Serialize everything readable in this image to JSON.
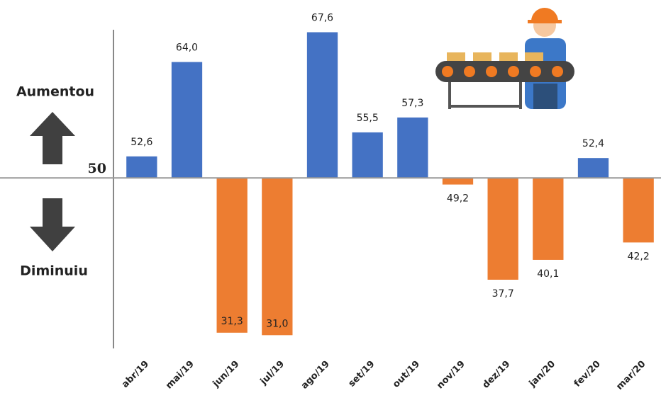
{
  "chart_data": {
    "type": "bar",
    "categories": [
      "abr/19",
      "mai/19",
      "jun/19",
      "jul/19",
      "ago/19",
      "set/19",
      "out/19",
      "nov/19",
      "dez/19",
      "jan/20",
      "fev/20",
      "mar/20"
    ],
    "values": [
      52.6,
      64.0,
      31.3,
      31.0,
      67.6,
      55.5,
      57.3,
      49.2,
      37.7,
      40.1,
      52.4,
      42.2
    ],
    "value_labels": [
      "52,6",
      "64,0",
      "31,3",
      "31,0",
      "67,6",
      "55,5",
      "57,3",
      "49,2",
      "37,7",
      "40,1",
      "52,4",
      "42,2"
    ],
    "baseline": 50,
    "ylim": [
      29.4,
      67.9
    ],
    "color_up": "#4472c4",
    "color_down": "#ed7d31",
    "label_up": "Aumentou",
    "label_down": "Diminuiu"
  }
}
